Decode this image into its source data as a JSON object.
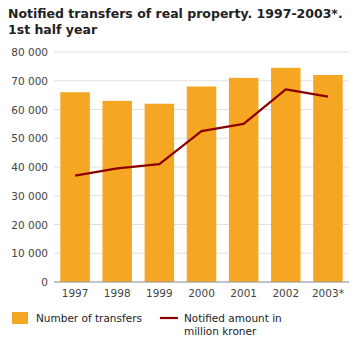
{
  "chart_data": {
    "type": "bar",
    "title": "Notified transfers of real property. 1997-2003*.",
    "subtitle": "1st half year",
    "categories": [
      "1997",
      "1998",
      "1999",
      "2000",
      "2001",
      "2002",
      "2003*"
    ],
    "series": [
      {
        "name": "Number of transfers",
        "type": "bar",
        "color": "#F5A623",
        "values": [
          66000,
          63000,
          62000,
          68000,
          71000,
          74500,
          72000
        ]
      },
      {
        "name": "Notified amount in\nmillion kroner",
        "type": "line",
        "color": "#8B0000",
        "values": [
          37000,
          39500,
          41000,
          52500,
          55000,
          67000,
          64500
        ]
      }
    ],
    "ylim": [
      0,
      80000
    ],
    "yticks": [
      0,
      {
        "value": 10000,
        "label": "10 000"
      },
      {
        "value": 20000,
        "label": "20 000"
      },
      {
        "value": 30000,
        "label": "30 000"
      },
      {
        "value": 40000,
        "label": "40 000"
      },
      {
        "value": 50000,
        "label": "50 000"
      },
      {
        "value": 60000,
        "label": "60 000"
      },
      {
        "value": 70000,
        "label": "70 000"
      },
      {
        "value": 80000,
        "label": "80 000"
      }
    ],
    "grid": true,
    "legend": "bottom"
  }
}
